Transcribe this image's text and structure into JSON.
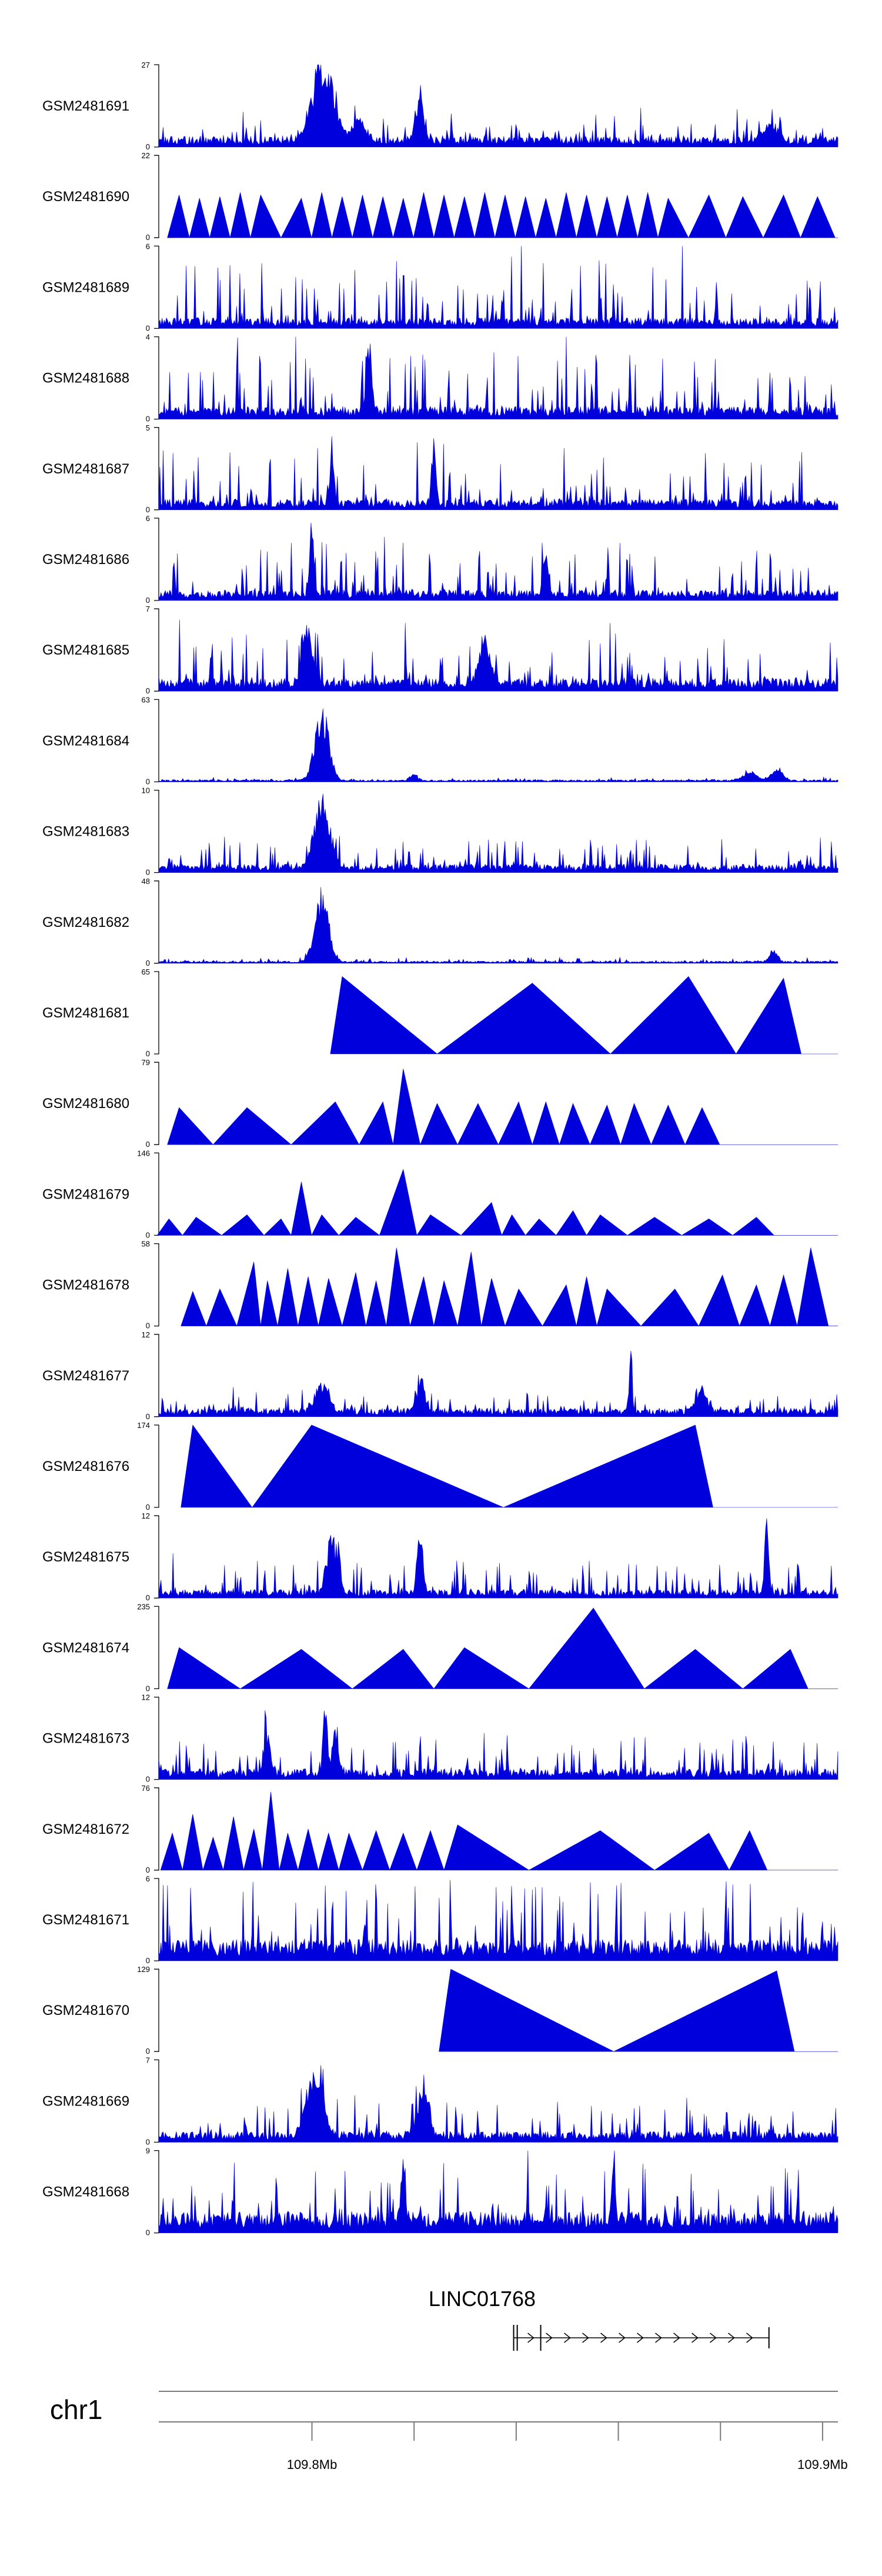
{
  "chart_data": {
    "type": "area",
    "title": "",
    "colors": {
      "signal": "#0000dd",
      "axis": "#000000",
      "ideogram": "#7a7a7a"
    },
    "x_range_mb": [
      109.77,
      109.903
    ],
    "tracks": [
      {
        "name": "GSM2481691",
        "max": 27,
        "min": 0,
        "style": "dense",
        "seed": 11,
        "base": 0.1,
        "noise": 0.28,
        "peaks": [
          [
            0.235,
            0.95,
            0.012
          ],
          [
            0.255,
            0.55,
            0.01
          ],
          [
            0.385,
            0.65,
            0.006
          ],
          [
            0.295,
            0.3,
            0.01
          ],
          [
            0.9,
            0.25,
            0.01
          ]
        ]
      },
      {
        "name": "GSM2481690",
        "max": 22,
        "min": 0,
        "style": "triangles",
        "seed": 12,
        "tri": [
          [
            0.03,
            0.52
          ],
          [
            0.06,
            0.48
          ],
          [
            0.09,
            0.5
          ],
          [
            0.12,
            0.55
          ],
          [
            0.15,
            0.52
          ],
          [
            0.21,
            0.48
          ],
          [
            0.24,
            0.55
          ],
          [
            0.27,
            0.5
          ],
          [
            0.3,
            0.52
          ],
          [
            0.33,
            0.5
          ],
          [
            0.36,
            0.48
          ],
          [
            0.39,
            0.55
          ],
          [
            0.42,
            0.52
          ],
          [
            0.45,
            0.5
          ],
          [
            0.48,
            0.55
          ],
          [
            0.51,
            0.52
          ],
          [
            0.54,
            0.5
          ],
          [
            0.57,
            0.48
          ],
          [
            0.6,
            0.55
          ],
          [
            0.63,
            0.52
          ],
          [
            0.66,
            0.5
          ],
          [
            0.69,
            0.52
          ],
          [
            0.72,
            0.55
          ],
          [
            0.75,
            0.48
          ],
          [
            0.81,
            0.52
          ],
          [
            0.86,
            0.5
          ],
          [
            0.92,
            0.52
          ],
          [
            0.97,
            0.5
          ]
        ]
      },
      {
        "name": "GSM2481689",
        "max": 6,
        "min": 0,
        "style": "dense",
        "seed": 13,
        "base": 0.1,
        "noise": 0.75,
        "peaks": []
      },
      {
        "name": "GSM2481688",
        "max": 4,
        "min": 0,
        "style": "dense",
        "seed": 14,
        "base": 0.12,
        "noise": 0.7,
        "peaks": [
          [
            0.31,
            0.95,
            0.004
          ]
        ]
      },
      {
        "name": "GSM2481687",
        "max": 5,
        "min": 0,
        "style": "dense",
        "seed": 15,
        "base": 0.1,
        "noise": 0.72,
        "peaks": [
          [
            0.255,
            0.95,
            0.003
          ],
          [
            0.405,
            0.95,
            0.003
          ]
        ]
      },
      {
        "name": "GSM2481686",
        "max": 6,
        "min": 0,
        "style": "dense",
        "seed": 16,
        "base": 0.1,
        "noise": 0.6,
        "peaks": [
          [
            0.225,
            0.92,
            0.003
          ],
          [
            0.57,
            0.55,
            0.004
          ]
        ]
      },
      {
        "name": "GSM2481685",
        "max": 7,
        "min": 0,
        "style": "dense",
        "seed": 17,
        "base": 0.12,
        "noise": 0.62,
        "peaks": [
          [
            0.22,
            0.75,
            0.008
          ],
          [
            0.48,
            0.65,
            0.008
          ]
        ]
      },
      {
        "name": "GSM2481684",
        "max": 63,
        "min": 0,
        "style": "dense",
        "seed": 18,
        "base": 0.02,
        "noise": 0.03,
        "peaks": [
          [
            0.24,
            0.98,
            0.01
          ],
          [
            0.87,
            0.12,
            0.01
          ],
          [
            0.91,
            0.18,
            0.008
          ],
          [
            0.375,
            0.08,
            0.006
          ]
        ]
      },
      {
        "name": "GSM2481683",
        "max": 10,
        "min": 0,
        "style": "dense",
        "seed": 19,
        "base": 0.08,
        "noise": 0.35,
        "peaks": [
          [
            0.24,
            0.92,
            0.012
          ]
        ]
      },
      {
        "name": "GSM2481682",
        "max": 48,
        "min": 0,
        "style": "dense",
        "seed": 20,
        "base": 0.02,
        "noise": 0.05,
        "peaks": [
          [
            0.24,
            0.97,
            0.01
          ],
          [
            0.905,
            0.16,
            0.006
          ]
        ]
      },
      {
        "name": "GSM2481681",
        "max": 65,
        "min": 0,
        "style": "triangles",
        "seed": 21,
        "tri": [
          [
            0.27,
            0.94
          ],
          [
            0.55,
            0.86
          ],
          [
            0.78,
            0.94
          ],
          [
            0.92,
            0.92
          ]
        ]
      },
      {
        "name": "GSM2481680",
        "max": 79,
        "min": 0,
        "style": "triangles",
        "seed": 22,
        "tri": [
          [
            0.03,
            0.45
          ],
          [
            0.13,
            0.45
          ],
          [
            0.26,
            0.52
          ],
          [
            0.33,
            0.52
          ],
          [
            0.36,
            0.92
          ],
          [
            0.41,
            0.5
          ],
          [
            0.47,
            0.5
          ],
          [
            0.53,
            0.52
          ],
          [
            0.57,
            0.52
          ],
          [
            0.61,
            0.5
          ],
          [
            0.66,
            0.48
          ],
          [
            0.7,
            0.5
          ],
          [
            0.75,
            0.48
          ],
          [
            0.8,
            0.45
          ]
        ]
      },
      {
        "name": "GSM2481679",
        "max": 146,
        "min": 0,
        "style": "triangles",
        "seed": 23,
        "tri": [
          [
            0.015,
            0.2
          ],
          [
            0.055,
            0.22
          ],
          [
            0.13,
            0.25
          ],
          [
            0.18,
            0.2
          ],
          [
            0.21,
            0.65
          ],
          [
            0.24,
            0.25
          ],
          [
            0.29,
            0.22
          ],
          [
            0.36,
            0.8
          ],
          [
            0.4,
            0.25
          ],
          [
            0.49,
            0.4
          ],
          [
            0.52,
            0.25
          ],
          [
            0.56,
            0.2
          ],
          [
            0.61,
            0.3
          ],
          [
            0.65,
            0.25
          ],
          [
            0.73,
            0.22
          ],
          [
            0.81,
            0.2
          ],
          [
            0.88,
            0.22
          ]
        ]
      },
      {
        "name": "GSM2481678",
        "max": 58,
        "min": 0,
        "style": "triangles",
        "seed": 24,
        "tri": [
          [
            0.05,
            0.42
          ],
          [
            0.09,
            0.45
          ],
          [
            0.14,
            0.78
          ],
          [
            0.16,
            0.55
          ],
          [
            0.19,
            0.7
          ],
          [
            0.22,
            0.6
          ],
          [
            0.25,
            0.58
          ],
          [
            0.29,
            0.65
          ],
          [
            0.32,
            0.55
          ],
          [
            0.35,
            0.95
          ],
          [
            0.39,
            0.6
          ],
          [
            0.42,
            0.55
          ],
          [
            0.46,
            0.9
          ],
          [
            0.49,
            0.58
          ],
          [
            0.53,
            0.45
          ],
          [
            0.6,
            0.5
          ],
          [
            0.63,
            0.6
          ],
          [
            0.66,
            0.45
          ],
          [
            0.76,
            0.45
          ],
          [
            0.83,
            0.62
          ],
          [
            0.88,
            0.5
          ],
          [
            0.92,
            0.62
          ],
          [
            0.96,
            0.95
          ]
        ]
      },
      {
        "name": "GSM2481677",
        "max": 12,
        "min": 0,
        "style": "dense",
        "seed": 25,
        "base": 0.08,
        "noise": 0.22,
        "peaks": [
          [
            0.24,
            0.4,
            0.01
          ],
          [
            0.385,
            0.45,
            0.006
          ],
          [
            0.695,
            0.98,
            0.002
          ],
          [
            0.8,
            0.3,
            0.008
          ]
        ]
      },
      {
        "name": "GSM2481676",
        "max": 174,
        "min": 0,
        "style": "triangles",
        "seed": 26,
        "tri": [
          [
            0.05,
            1.0
          ],
          [
            0.225,
            1.0
          ],
          [
            0.79,
            1.0
          ]
        ]
      },
      {
        "name": "GSM2481675",
        "max": 12,
        "min": 0,
        "style": "dense",
        "seed": 27,
        "base": 0.08,
        "noise": 0.4,
        "peaks": [
          [
            0.255,
            0.8,
            0.008
          ],
          [
            0.385,
            0.95,
            0.004
          ],
          [
            0.895,
            0.98,
            0.003
          ]
        ]
      },
      {
        "name": "GSM2481674",
        "max": 235,
        "min": 0,
        "style": "triangles",
        "seed": 28,
        "tri": [
          [
            0.03,
            0.5
          ],
          [
            0.21,
            0.48
          ],
          [
            0.36,
            0.48
          ],
          [
            0.45,
            0.5
          ],
          [
            0.64,
            0.98
          ],
          [
            0.79,
            0.48
          ],
          [
            0.93,
            0.48
          ]
        ]
      },
      {
        "name": "GSM2481673",
        "max": 12,
        "min": 0,
        "style": "dense",
        "seed": 29,
        "base": 0.1,
        "noise": 0.45,
        "peaks": [
          [
            0.245,
            0.98,
            0.003
          ],
          [
            0.26,
            0.7,
            0.004
          ],
          [
            0.16,
            0.55,
            0.004
          ]
        ]
      },
      {
        "name": "GSM2481672",
        "max": 76,
        "min": 0,
        "style": "triangles",
        "seed": 30,
        "tri": [
          [
            0.02,
            0.45
          ],
          [
            0.05,
            0.68
          ],
          [
            0.08,
            0.4
          ],
          [
            0.11,
            0.65
          ],
          [
            0.14,
            0.5
          ],
          [
            0.165,
            0.95
          ],
          [
            0.19,
            0.45
          ],
          [
            0.22,
            0.5
          ],
          [
            0.25,
            0.45
          ],
          [
            0.28,
            0.45
          ],
          [
            0.32,
            0.48
          ],
          [
            0.36,
            0.45
          ],
          [
            0.4,
            0.48
          ],
          [
            0.44,
            0.55
          ],
          [
            0.65,
            0.48
          ],
          [
            0.81,
            0.45
          ],
          [
            0.87,
            0.48
          ]
        ]
      },
      {
        "name": "GSM2481671",
        "max": 6,
        "min": 0,
        "style": "dense",
        "seed": 31,
        "base": 0.2,
        "noise": 0.85,
        "peaks": []
      },
      {
        "name": "GSM2481670",
        "max": 129,
        "min": 0,
        "style": "triangles",
        "seed": 32,
        "tri": [
          [
            0.43,
            1.0
          ],
          [
            0.91,
            0.98
          ]
        ]
      },
      {
        "name": "GSM2481669",
        "max": 7,
        "min": 0,
        "style": "dense",
        "seed": 33,
        "base": 0.1,
        "noise": 0.45,
        "peaks": [
          [
            0.23,
            0.9,
            0.012
          ],
          [
            0.39,
            0.75,
            0.008
          ]
        ]
      },
      {
        "name": "GSM2481668",
        "max": 9,
        "min": 0,
        "style": "dense",
        "seed": 34,
        "base": 0.2,
        "noise": 0.7,
        "peaks": [
          [
            0.36,
            0.95,
            0.003
          ],
          [
            0.67,
            0.8,
            0.003
          ]
        ]
      }
    ],
    "gene": {
      "name": "LINC01768",
      "start_mb": 109.8395,
      "end_mb": 109.8895,
      "strand": "+",
      "exon_starts_mb": [
        109.8395,
        109.8402,
        109.8448
      ]
    },
    "chromosome": "chr1",
    "axis_ticks": [
      {
        "mb": 109.8,
        "label": "109.8Mb"
      },
      {
        "mb": 109.82,
        "label": ""
      },
      {
        "mb": 109.84,
        "label": ""
      },
      {
        "mb": 109.86,
        "label": ""
      },
      {
        "mb": 109.88,
        "label": ""
      },
      {
        "mb": 109.9,
        "label": "109.9Mb"
      }
    ]
  }
}
